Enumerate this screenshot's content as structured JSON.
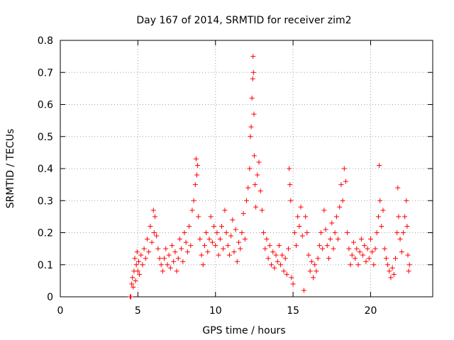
{
  "chart_data": {
    "type": "scatter",
    "title": "Day 167 of 2014, SRMTID for receiver zim2",
    "xlabel": "GPS time / hours",
    "ylabel": "SRMTID / TECUs",
    "xlim": [
      0,
      24
    ],
    "ylim": [
      0,
      0.8
    ],
    "x_ticks": [
      "0",
      "5",
      "10",
      "15",
      "20"
    ],
    "y_ticks": [
      "0",
      "0.1",
      "0.2",
      "0.3",
      "0.4",
      "0.5",
      "0.6",
      "0.7",
      "0.8"
    ],
    "x_tick_values": [
      0,
      5,
      10,
      15,
      20
    ],
    "y_tick_values": [
      0,
      0.1,
      0.2,
      0.3,
      0.4,
      0.5,
      0.6,
      0.7,
      0.8
    ],
    "grid": true,
    "marker": "+",
    "color": "#ff0000",
    "series": [
      {
        "name": "SRMTID",
        "points": [
          [
            4.5,
            0.0
          ],
          [
            4.55,
            0.0
          ],
          [
            4.6,
            0.04
          ],
          [
            4.65,
            0.06
          ],
          [
            4.7,
            0.03
          ],
          [
            4.75,
            0.08
          ],
          [
            4.8,
            0.12
          ],
          [
            4.85,
            0.05
          ],
          [
            4.9,
            0.1
          ],
          [
            4.95,
            0.14
          ],
          [
            5.0,
            0.08
          ],
          [
            5.05,
            0.11
          ],
          [
            5.1,
            0.07
          ],
          [
            5.2,
            0.13
          ],
          [
            5.3,
            0.1
          ],
          [
            5.4,
            0.15
          ],
          [
            5.5,
            0.12
          ],
          [
            5.6,
            0.18
          ],
          [
            5.7,
            0.14
          ],
          [
            5.8,
            0.22
          ],
          [
            5.9,
            0.17
          ],
          [
            6.0,
            0.27
          ],
          [
            6.05,
            0.2
          ],
          [
            6.1,
            0.25
          ],
          [
            6.2,
            0.19
          ],
          [
            6.3,
            0.15
          ],
          [
            6.4,
            0.12
          ],
          [
            6.5,
            0.1
          ],
          [
            6.6,
            0.08
          ],
          [
            6.7,
            0.12
          ],
          [
            6.8,
            0.15
          ],
          [
            6.9,
            0.1
          ],
          [
            7.0,
            0.13
          ],
          [
            7.1,
            0.09
          ],
          [
            7.2,
            0.16
          ],
          [
            7.3,
            0.11
          ],
          [
            7.4,
            0.14
          ],
          [
            7.5,
            0.08
          ],
          [
            7.6,
            0.12
          ],
          [
            7.7,
            0.18
          ],
          [
            7.8,
            0.15
          ],
          [
            7.9,
            0.11
          ],
          [
            8.0,
            0.2
          ],
          [
            8.1,
            0.17
          ],
          [
            8.2,
            0.14
          ],
          [
            8.3,
            0.22
          ],
          [
            8.4,
            0.16
          ],
          [
            8.5,
            0.27
          ],
          [
            8.6,
            0.3
          ],
          [
            8.7,
            0.35
          ],
          [
            8.75,
            0.43
          ],
          [
            8.8,
            0.38
          ],
          [
            8.85,
            0.41
          ],
          [
            8.9,
            0.25
          ],
          [
            9.0,
            0.18
          ],
          [
            9.1,
            0.13
          ],
          [
            9.2,
            0.1
          ],
          [
            9.3,
            0.16
          ],
          [
            9.4,
            0.2
          ],
          [
            9.5,
            0.14
          ],
          [
            9.6,
            0.18
          ],
          [
            9.7,
            0.25
          ],
          [
            9.8,
            0.17
          ],
          [
            9.9,
            0.22
          ],
          [
            10.0,
            0.16
          ],
          [
            10.1,
            0.2
          ],
          [
            10.2,
            0.13
          ],
          [
            10.3,
            0.18
          ],
          [
            10.4,
            0.22
          ],
          [
            10.5,
            0.15
          ],
          [
            10.6,
            0.27
          ],
          [
            10.7,
            0.2
          ],
          [
            10.8,
            0.16
          ],
          [
            10.9,
            0.13
          ],
          [
            11.0,
            0.19
          ],
          [
            11.1,
            0.24
          ],
          [
            11.2,
            0.14
          ],
          [
            11.3,
            0.21
          ],
          [
            11.4,
            0.11
          ],
          [
            11.5,
            0.17
          ],
          [
            11.6,
            0.15
          ],
          [
            11.7,
            0.2
          ],
          [
            11.8,
            0.26
          ],
          [
            11.9,
            0.18
          ],
          [
            12.0,
            0.3
          ],
          [
            12.1,
            0.34
          ],
          [
            12.2,
            0.4
          ],
          [
            12.25,
            0.5
          ],
          [
            12.3,
            0.53
          ],
          [
            12.35,
            0.62
          ],
          [
            12.4,
            0.68
          ],
          [
            12.42,
            0.75
          ],
          [
            12.45,
            0.7
          ],
          [
            12.48,
            0.57
          ],
          [
            12.5,
            0.44
          ],
          [
            12.55,
            0.35
          ],
          [
            12.6,
            0.28
          ],
          [
            12.7,
            0.38
          ],
          [
            12.8,
            0.42
          ],
          [
            12.9,
            0.33
          ],
          [
            13.0,
            0.27
          ],
          [
            13.1,
            0.2
          ],
          [
            13.2,
            0.15
          ],
          [
            13.3,
            0.18
          ],
          [
            13.4,
            0.12
          ],
          [
            13.5,
            0.16
          ],
          [
            13.6,
            0.1
          ],
          [
            13.7,
            0.14
          ],
          [
            13.8,
            0.09
          ],
          [
            13.9,
            0.13
          ],
          [
            14.0,
            0.11
          ],
          [
            14.1,
            0.16
          ],
          [
            14.2,
            0.1
          ],
          [
            14.3,
            0.13
          ],
          [
            14.4,
            0.08
          ],
          [
            14.5,
            0.12
          ],
          [
            14.6,
            0.07
          ],
          [
            14.7,
            0.15
          ],
          [
            14.75,
            0.4
          ],
          [
            14.8,
            0.35
          ],
          [
            14.85,
            0.3
          ],
          [
            14.9,
            0.06
          ],
          [
            15.0,
            0.04
          ],
          [
            15.1,
            0.2
          ],
          [
            15.2,
            0.16
          ],
          [
            15.3,
            0.25
          ],
          [
            15.4,
            0.22
          ],
          [
            15.5,
            0.28
          ],
          [
            15.6,
            0.19
          ],
          [
            15.7,
            0.02
          ],
          [
            15.8,
            0.25
          ],
          [
            15.9,
            0.2
          ],
          [
            16.0,
            0.13
          ],
          [
            16.1,
            0.08
          ],
          [
            16.2,
            0.11
          ],
          [
            16.3,
            0.06
          ],
          [
            16.4,
            0.1
          ],
          [
            16.5,
            0.08
          ],
          [
            16.6,
            0.12
          ],
          [
            16.7,
            0.16
          ],
          [
            16.8,
            0.2
          ],
          [
            16.9,
            0.15
          ],
          [
            17.0,
            0.27
          ],
          [
            17.1,
            0.21
          ],
          [
            17.2,
            0.16
          ],
          [
            17.3,
            0.12
          ],
          [
            17.4,
            0.18
          ],
          [
            17.5,
            0.23
          ],
          [
            17.6,
            0.15
          ],
          [
            17.7,
            0.2
          ],
          [
            17.8,
            0.25
          ],
          [
            17.9,
            0.18
          ],
          [
            18.0,
            0.28
          ],
          [
            18.1,
            0.35
          ],
          [
            18.2,
            0.3
          ],
          [
            18.3,
            0.4
          ],
          [
            18.4,
            0.36
          ],
          [
            18.5,
            0.2
          ],
          [
            18.6,
            0.15
          ],
          [
            18.7,
            0.1
          ],
          [
            18.8,
            0.13
          ],
          [
            18.9,
            0.17
          ],
          [
            19.0,
            0.12
          ],
          [
            19.1,
            0.15
          ],
          [
            19.2,
            0.1
          ],
          [
            19.3,
            0.14
          ],
          [
            19.4,
            0.18
          ],
          [
            19.5,
            0.13
          ],
          [
            19.6,
            0.16
          ],
          [
            19.7,
            0.11
          ],
          [
            19.8,
            0.15
          ],
          [
            19.9,
            0.12
          ],
          [
            20.0,
            0.18
          ],
          [
            20.1,
            0.14
          ],
          [
            20.2,
            0.1
          ],
          [
            20.3,
            0.15
          ],
          [
            20.4,
            0.2
          ],
          [
            20.5,
            0.25
          ],
          [
            20.55,
            0.41
          ],
          [
            20.6,
            0.3
          ],
          [
            20.7,
            0.22
          ],
          [
            20.8,
            0.27
          ],
          [
            20.9,
            0.15
          ],
          [
            21.0,
            0.12
          ],
          [
            21.1,
            0.1
          ],
          [
            21.2,
            0.08
          ],
          [
            21.3,
            0.06
          ],
          [
            21.4,
            0.09
          ],
          [
            21.5,
            0.07
          ],
          [
            21.6,
            0.12
          ],
          [
            21.7,
            0.2
          ],
          [
            21.75,
            0.34
          ],
          [
            21.8,
            0.25
          ],
          [
            21.9,
            0.18
          ],
          [
            22.0,
            0.14
          ],
          [
            22.1,
            0.2
          ],
          [
            22.2,
            0.25
          ],
          [
            22.3,
            0.3
          ],
          [
            22.35,
            0.22
          ],
          [
            22.4,
            0.13
          ],
          [
            22.45,
            0.08
          ],
          [
            22.5,
            0.1
          ]
        ]
      }
    ]
  }
}
